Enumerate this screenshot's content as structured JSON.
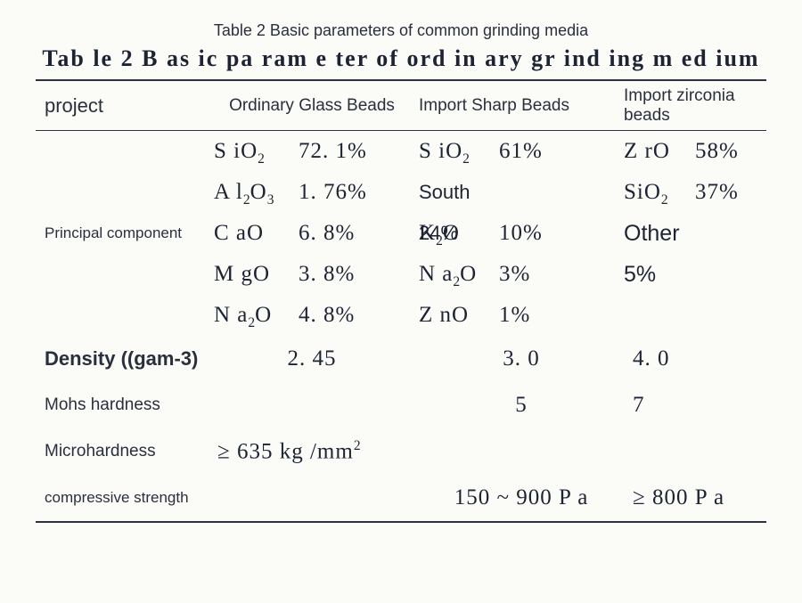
{
  "caption": "Table 2 Basic parameters of common grinding media",
  "title": "Tab le 2   B as ic  pa ram e ter  of ord in ary  gr ind ing m ed ium",
  "headers": {
    "project": "project",
    "col1": "Ordinary Glass Beads",
    "col2": "Import Sharp Beads",
    "col3": "Import zirconia beads"
  },
  "principal": {
    "label": "Principal component",
    "col1": [
      {
        "f": "S iO<sub>2</sub>",
        "v": "72. 1%"
      },
      {
        "f": "A l<sub>2</sub>O<sub>3</sub>",
        "v": "1. 76%"
      },
      {
        "f": "C aO",
        "v": "6. 8%"
      },
      {
        "f": "M gO",
        "v": "3. 8%"
      },
      {
        "f": "N a<sub>2</sub>O",
        "v": "4. 8%"
      }
    ],
    "col2": [
      {
        "f": "S iO<sub>2</sub>",
        "v": "61%",
        "cls": ""
      },
      {
        "f": "South 24%",
        "v": "",
        "cls": "south"
      },
      {
        "f": "K<sub>2</sub>O",
        "v": "10%",
        "cls": ""
      },
      {
        "f": "N a<sub>2</sub>O",
        "v": "3%",
        "cls": ""
      },
      {
        "f": "Z nO",
        "v": "1%",
        "cls": ""
      }
    ],
    "col3": [
      {
        "f": "Z rO",
        "v": "58%",
        "cls": ""
      },
      {
        "f": "SiO<sub>2</sub>",
        "v": "37%",
        "cls": ""
      },
      {
        "f": "Other 5%",
        "v": "",
        "cls": "other"
      }
    ]
  },
  "rows": {
    "density": {
      "label": "Density ((gam-3)",
      "c1": "2. 45",
      "c2": "3. 0",
      "c3": "4. 0"
    },
    "mohs": {
      "label": "Mohs hardness",
      "c1": "",
      "c2": "5",
      "c3": "7"
    },
    "micro": {
      "label": "Microhardness",
      "c1": "≥ 635  kg /mm",
      "c1_sup": "2",
      "c2": "",
      "c3": ""
    },
    "comp": {
      "label": "compressive strength",
      "c1": "",
      "c2": "150 ~ 900 P a",
      "c3": "≥ 800 P a"
    }
  },
  "colors": {
    "bg": "#fbfbf7",
    "text": "#1d2333",
    "label_text": "#2a2f3d",
    "rule": "#2b3342"
  }
}
